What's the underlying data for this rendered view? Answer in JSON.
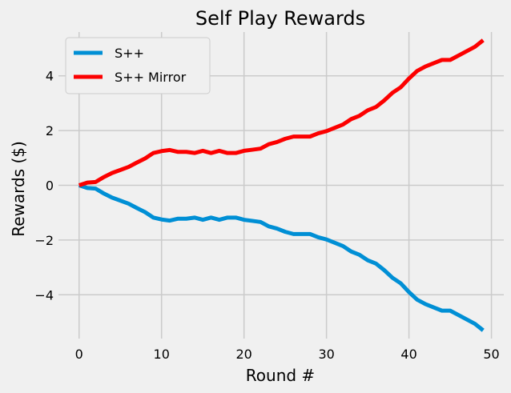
{
  "chart_data": {
    "type": "line",
    "title": "Self Play Rewards",
    "xlabel": "Round #",
    "ylabel": "Rewards ($)",
    "xlim": [
      -2.5,
      51.5
    ],
    "ylim": [
      -5.6,
      5.6
    ],
    "xticks": [
      0,
      10,
      20,
      30,
      40,
      50
    ],
    "yticks": [
      -4,
      -2,
      0,
      2,
      4
    ],
    "xtick_labels": [
      "0",
      "10",
      "20",
      "30",
      "40",
      "50"
    ],
    "ytick_labels": [
      "−4",
      "−2",
      "0",
      "2",
      "4"
    ],
    "grid": true,
    "legend_position": "top-left",
    "x": [
      0,
      1,
      2,
      3,
      4,
      5,
      6,
      7,
      8,
      9,
      10,
      11,
      12,
      13,
      14,
      15,
      16,
      17,
      18,
      19,
      20,
      21,
      22,
      23,
      24,
      25,
      26,
      27,
      28,
      29,
      30,
      31,
      32,
      33,
      34,
      35,
      36,
      37,
      38,
      39,
      40,
      41,
      42,
      43,
      44,
      45,
      46,
      47,
      48,
      49
    ],
    "series": [
      {
        "name": "S++",
        "color": "#008fd5",
        "values": [
          0.0,
          -0.1,
          -0.12,
          -0.3,
          -0.45,
          -0.56,
          -0.67,
          -0.83,
          -0.98,
          -1.18,
          -1.25,
          -1.29,
          -1.22,
          -1.22,
          -1.18,
          -1.26,
          -1.18,
          -1.26,
          -1.18,
          -1.18,
          -1.26,
          -1.3,
          -1.34,
          -1.5,
          -1.58,
          -1.7,
          -1.78,
          -1.78,
          -1.78,
          -1.9,
          -1.98,
          -2.1,
          -2.22,
          -2.42,
          -2.54,
          -2.74,
          -2.86,
          -3.1,
          -3.38,
          -3.58,
          -3.9,
          -4.18,
          -4.34,
          -4.46,
          -4.58,
          -4.58,
          -4.74,
          -4.9,
          -5.06,
          -5.3
        ]
      },
      {
        "name": "S++ Mirror",
        "color": "#fc0000",
        "values": [
          0.0,
          0.1,
          0.12,
          0.3,
          0.45,
          0.56,
          0.67,
          0.83,
          0.98,
          1.18,
          1.25,
          1.29,
          1.22,
          1.22,
          1.18,
          1.26,
          1.18,
          1.26,
          1.18,
          1.18,
          1.26,
          1.3,
          1.34,
          1.5,
          1.58,
          1.7,
          1.78,
          1.78,
          1.78,
          1.9,
          1.98,
          2.1,
          2.22,
          2.42,
          2.54,
          2.74,
          2.86,
          3.1,
          3.38,
          3.58,
          3.9,
          4.18,
          4.34,
          4.46,
          4.58,
          4.58,
          4.74,
          4.9,
          5.06,
          5.3
        ]
      }
    ]
  }
}
